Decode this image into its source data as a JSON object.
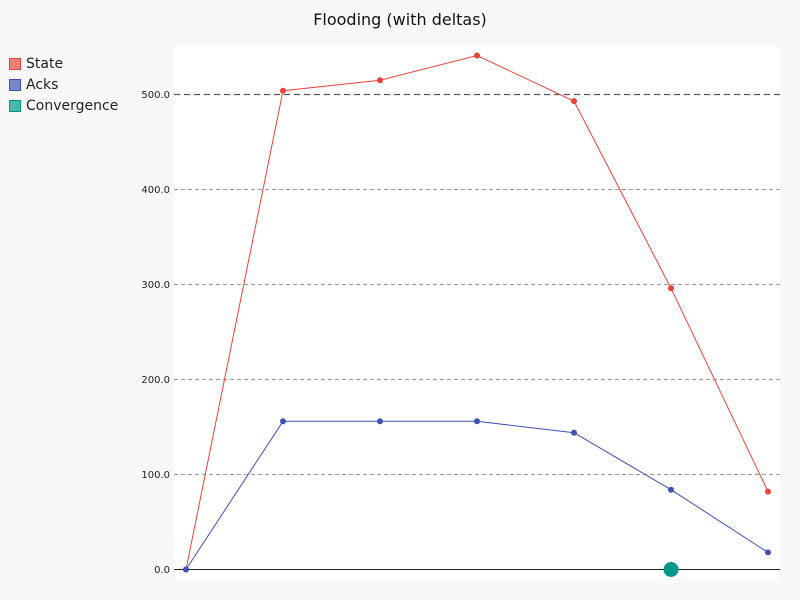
{
  "chart_data": {
    "type": "line",
    "title": "Flooding (with deltas)",
    "xlabel": "",
    "ylabel": "",
    "x": [
      0,
      1,
      2,
      3,
      4,
      5,
      6
    ],
    "ylim": [
      0,
      550
    ],
    "yticks": [
      "0.0",
      "100.0",
      "200.0",
      "300.0",
      "400.0",
      "500.0"
    ],
    "ytick_values": [
      0,
      100,
      200,
      300,
      400,
      500
    ],
    "grid": true,
    "legend_position": "top-left outside",
    "reference_line": {
      "y": 500
    },
    "series": [
      {
        "name": "State",
        "color": "#e8433a",
        "values": [
          0,
          504,
          515,
          541,
          493,
          296,
          82
        ]
      },
      {
        "name": "Acks",
        "color": "#3f51b5",
        "values": [
          0,
          156,
          156,
          156,
          144,
          84,
          18
        ]
      }
    ],
    "markers": [
      {
        "name": "Convergence",
        "color": "#009688",
        "x": 5,
        "y": 0
      }
    ]
  },
  "legend": [
    {
      "label": "State",
      "fill": "#f47f78",
      "border": "#e8433a"
    },
    {
      "label": "Acks",
      "fill": "#7986cb",
      "border": "#3f51b5"
    },
    {
      "label": "Convergence",
      "fill": "#4db6ac",
      "border": "#009688"
    }
  ]
}
